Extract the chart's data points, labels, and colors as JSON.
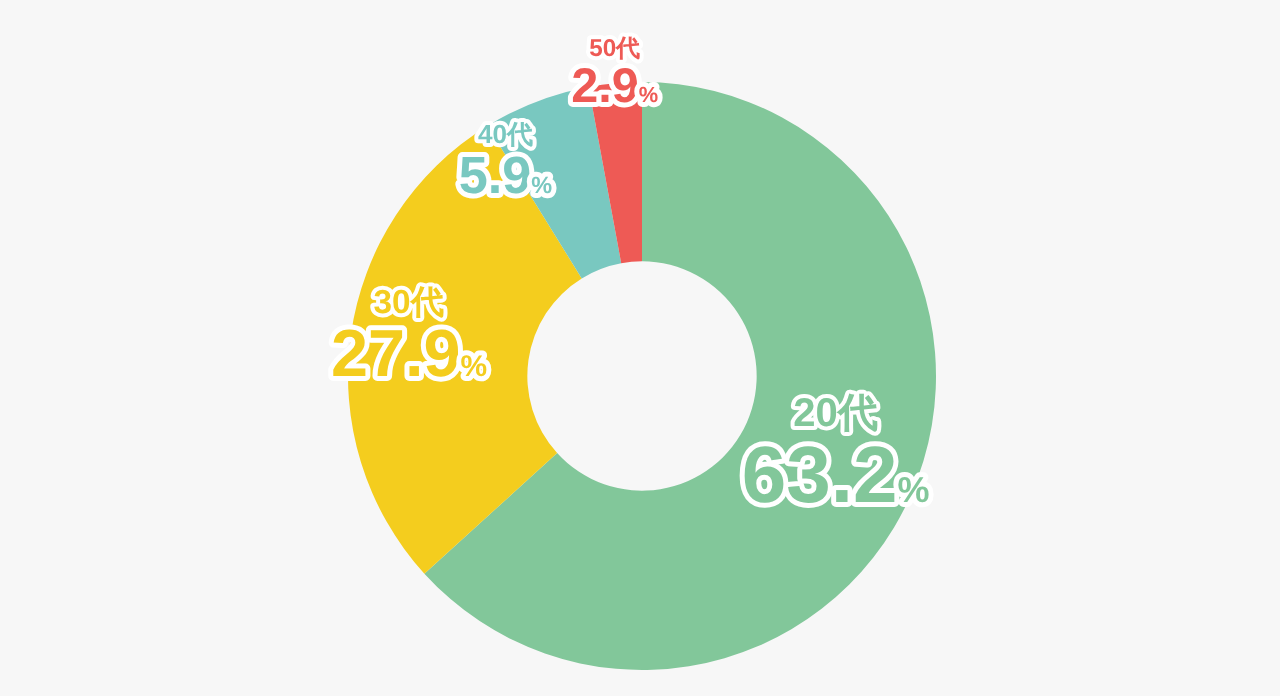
{
  "chart_data": {
    "type": "donut",
    "categories": [
      "20代",
      "30代",
      "40代",
      "50代"
    ],
    "values": [
      63.2,
      27.9,
      5.9,
      2.9
    ],
    "colors": [
      "#82c79a",
      "#f4cd1e",
      "#79c8c0",
      "#ee5a55"
    ],
    "value_labels": [
      "63.2%",
      "27.9%",
      "5.9%",
      "2.9%"
    ]
  }
}
